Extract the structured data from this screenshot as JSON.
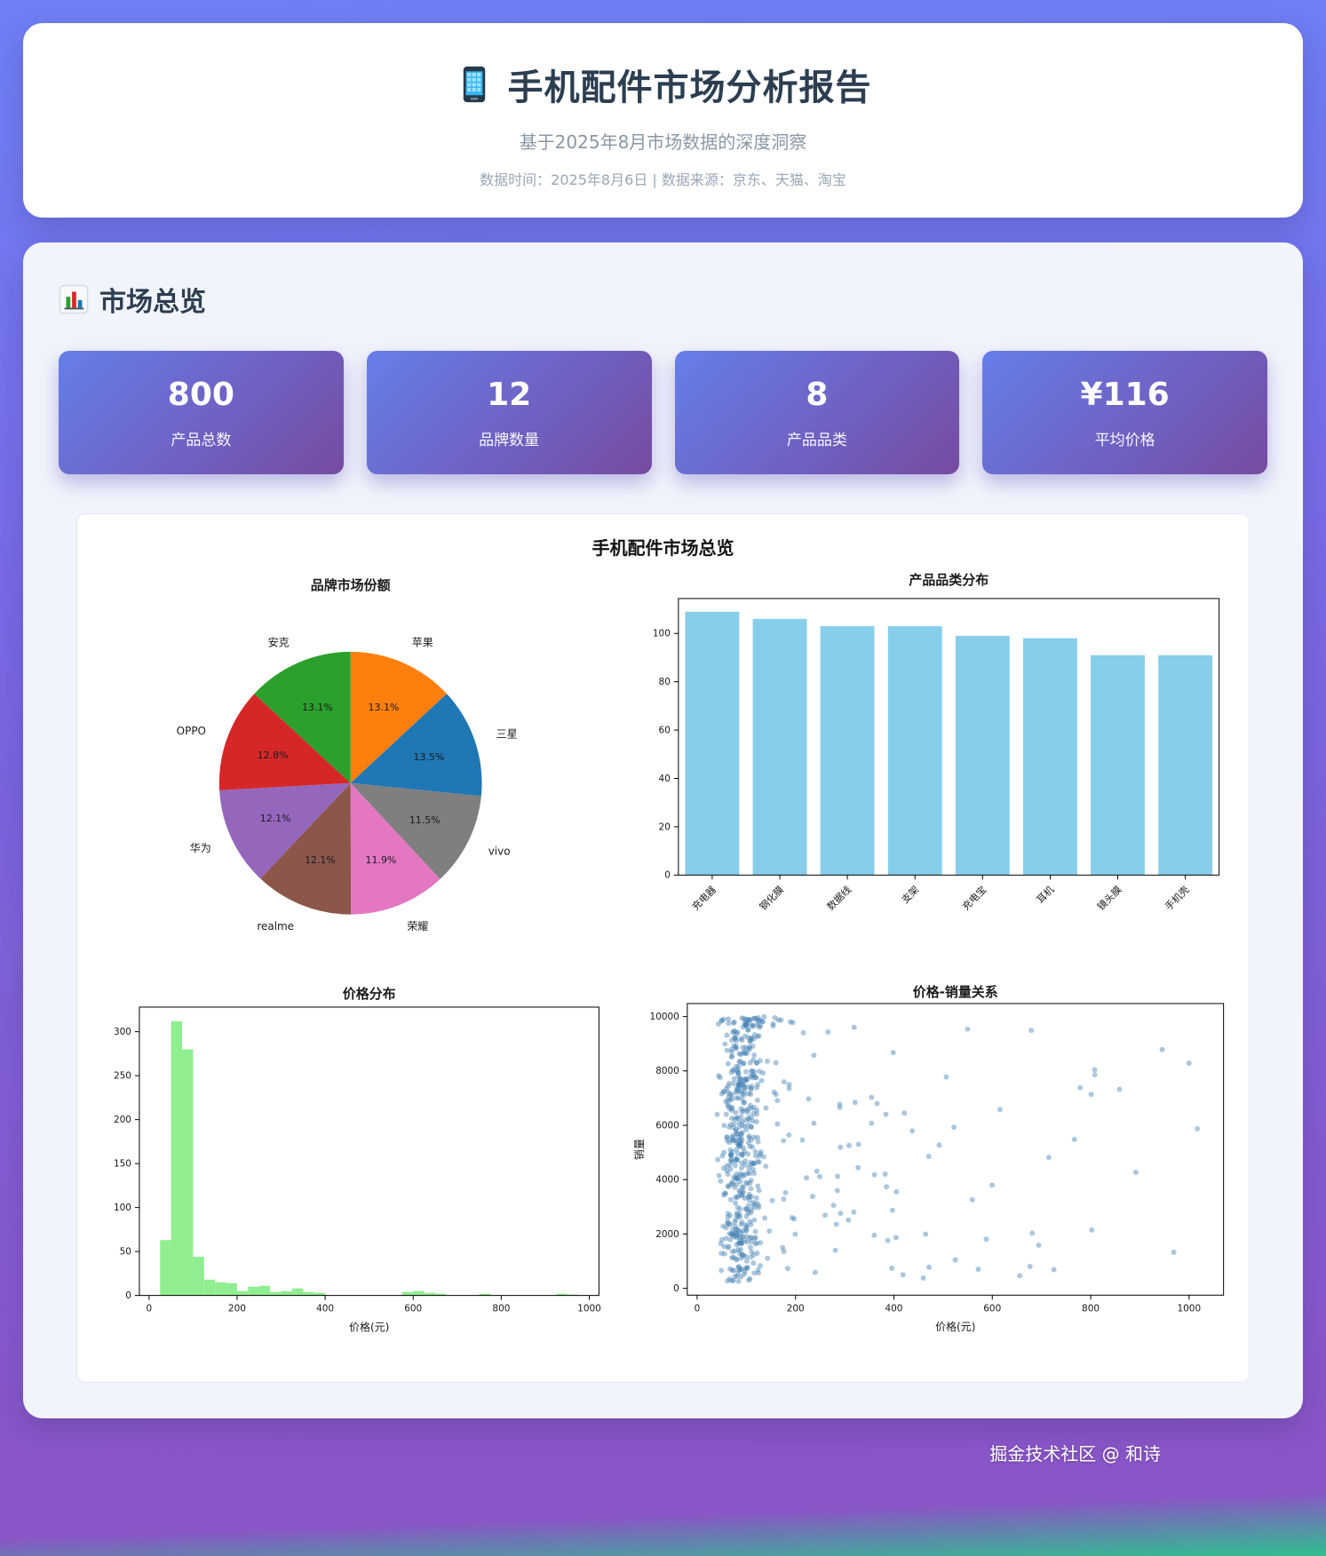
{
  "header": {
    "title": "手机配件市场分析报告",
    "subtitle": "基于2025年8月市场数据的深度洞察",
    "meta": "数据时间：2025年8月6日 | 数据来源：京东、天猫、淘宝"
  },
  "overview": {
    "section_title": "市场总览",
    "stats": [
      {
        "value": "800",
        "label": "产品总数"
      },
      {
        "value": "12",
        "label": "品牌数量"
      },
      {
        "value": "8",
        "label": "产品品类"
      },
      {
        "value": "¥116",
        "label": "平均价格"
      }
    ]
  },
  "figure": {
    "suptitle": "手机配件市场总览"
  },
  "footer": {
    "credit": "掘金技术社区 @ 和诗"
  },
  "colors": {
    "stat_gradient": [
      "#667eea",
      "#764ba2"
    ],
    "page_gradient": [
      "#6f7ff5",
      "#7a66e2",
      "#8a55c6",
      "#2fbf8f"
    ],
    "title_text": "#2c3e50"
  },
  "chart_data": [
    {
      "type": "pie",
      "title": "品牌市场份额",
      "labels": [
        "苹果",
        "三星",
        "vivo",
        "荣耀",
        "realme",
        "华为",
        "OPPO",
        "安克"
      ],
      "values": [
        13.1,
        13.5,
        11.5,
        11.9,
        12.1,
        12.1,
        12.8,
        13.1
      ],
      "colors": [
        "#ff7f0e",
        "#1f77b4",
        "#7f7f7f",
        "#e377c2",
        "#8c564b",
        "#9467bd",
        "#d62728",
        "#2ca02c"
      ],
      "start_angle": 90,
      "clockwise": true
    },
    {
      "type": "bar",
      "title": "产品品类分布",
      "categories": [
        "充电器",
        "钢化膜",
        "数据线",
        "支架",
        "充电宝",
        "耳机",
        "镜头膜",
        "手机壳"
      ],
      "values": [
        109,
        106,
        103,
        103,
        99,
        98,
        91,
        91
      ],
      "bar_color": "#87ceeb",
      "ylim": [
        0,
        114.45
      ],
      "yticks": [
        0,
        20,
        40,
        60,
        80,
        100
      ],
      "xtick_rotation": 45
    },
    {
      "type": "histogram",
      "title": "价格分布",
      "xlabel": "价格(元)",
      "bar_color": "#90ee90",
      "bin_start": 25,
      "bin_width": 25,
      "counts": [
        63,
        312,
        280,
        44,
        18,
        15,
        14,
        5,
        10,
        11,
        4,
        5,
        8,
        4,
        3,
        0,
        0,
        0,
        0,
        0,
        0,
        0,
        4,
        5,
        3,
        2,
        0,
        0,
        0,
        2,
        0,
        0,
        0,
        0,
        0,
        0,
        2,
        1
      ],
      "xticks": [
        0,
        200,
        400,
        600,
        800,
        1000
      ],
      "yticks": [
        0,
        50,
        100,
        150,
        200,
        250,
        300
      ],
      "xlim": [
        -22,
        1022
      ],
      "ylim": [
        0,
        328
      ]
    },
    {
      "type": "scatter",
      "title": "价格-销量关系",
      "xlabel": "价格(元)",
      "ylabel": "销量",
      "point_color": "#4682b4",
      "point_alpha": 0.45,
      "xticks": [
        0,
        200,
        400,
        600,
        800,
        1000
      ],
      "yticks": [
        0,
        2000,
        4000,
        6000,
        8000,
        10000
      ],
      "xlim": [
        -20,
        1070
      ],
      "ylim": [
        -250,
        10480
      ],
      "seed": 7,
      "clusters": [
        {
          "n": 480,
          "x_dist": "bell",
          "x_min": 40,
          "x_max": 135,
          "y_min": 250,
          "y_max": 9950
        },
        {
          "n": 90,
          "x_dist": "pow",
          "x_pow": 1.8,
          "x_min": 120,
          "x_max": 480,
          "y_min": 300,
          "y_max": 9800
        },
        {
          "n": 30,
          "x_dist": "pow",
          "x_pow": 1.0,
          "x_min": 450,
          "x_max": 1030,
          "y_min": 400,
          "y_max": 9600
        },
        {
          "n": 20,
          "x_dist": "bell",
          "x_min": 55,
          "x_max": 200,
          "y_min": 9650,
          "y_max": 10000
        }
      ]
    }
  ]
}
